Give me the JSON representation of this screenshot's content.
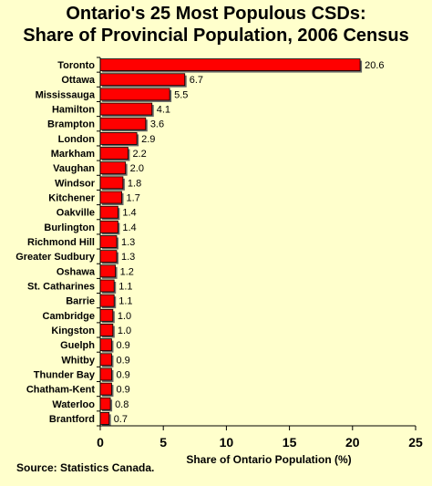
{
  "chart_data": {
    "type": "bar",
    "orientation": "horizontal",
    "title": "Ontario's 25 Most Populous CSDs:",
    "subtitle": "Share of Provincial Population, 2006 Census",
    "xlabel": "Share of Ontario Population (%)",
    "ylabel": "",
    "xlim": [
      0,
      25
    ],
    "xticks": [
      "0",
      "5",
      "10",
      "15",
      "20",
      "25"
    ],
    "grid": false,
    "bar_color": "#ff0000",
    "categories": [
      "Toronto",
      "Ottawa",
      "Mississauga",
      "Hamilton",
      "Brampton",
      "London",
      "Markham",
      "Vaughan",
      "Windsor",
      "Kitchener",
      "Oakville",
      "Burlington",
      "Richmond Hill",
      "Greater Sudbury",
      "Oshawa",
      "St. Catharines",
      "Barrie",
      "Cambridge",
      "Kingston",
      "Guelph",
      "Whitby",
      "Thunder Bay",
      "Chatham-Kent",
      "Waterloo",
      "Brantford"
    ],
    "values": [
      20.6,
      6.7,
      5.5,
      4.1,
      3.6,
      2.9,
      2.2,
      2.0,
      1.8,
      1.7,
      1.4,
      1.4,
      1.3,
      1.3,
      1.2,
      1.1,
      1.1,
      1.0,
      1.0,
      0.9,
      0.9,
      0.9,
      0.9,
      0.8,
      0.7
    ],
    "value_labels": [
      "20.6",
      "6.7",
      "5.5",
      "4.1",
      "3.6",
      "2.9",
      "2.2",
      "2.0",
      "1.8",
      "1.7",
      "1.4",
      "1.4",
      "1.3",
      "1.3",
      "1.2",
      "1.1",
      "1.1",
      "1.0",
      "1.0",
      "0.9",
      "0.9",
      "0.9",
      "0.9",
      "0.8",
      "0.7"
    ]
  },
  "source": "Source: Statistics Canada.",
  "colors": {
    "background": "#ffffcc",
    "bar": "#ff0000"
  }
}
